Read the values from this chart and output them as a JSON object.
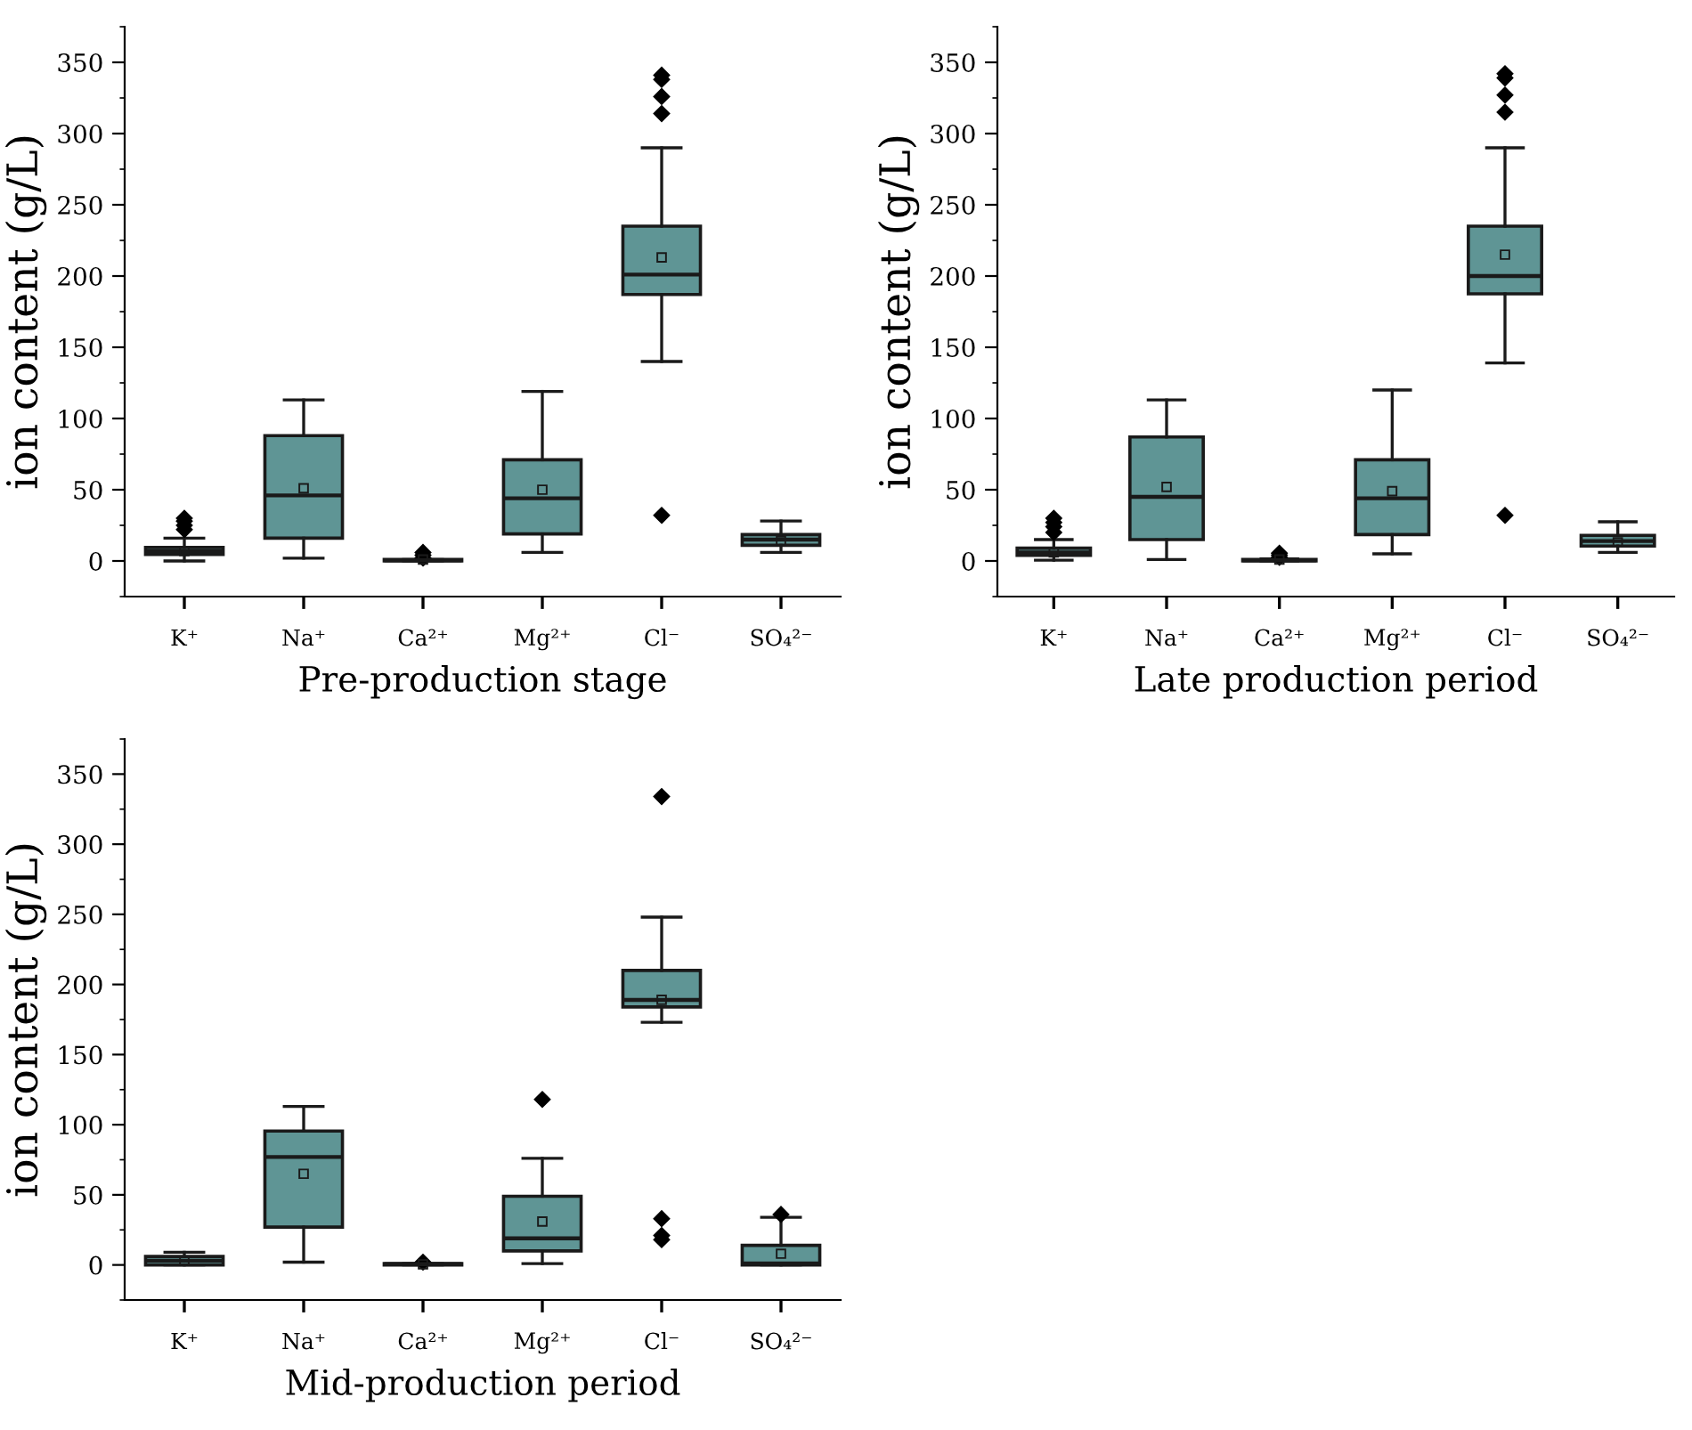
{
  "chart_data": [
    {
      "type": "box",
      "xlabel": "Pre-production stage",
      "ylabel": "ion content (g/L)",
      "categories": [
        "K⁺",
        "Na⁺",
        "Ca²⁺",
        "Mg²⁺",
        "Cl⁻",
        "SO₄²⁻"
      ],
      "color": "#5f9595",
      "ylim": [
        -25,
        375
      ],
      "yticks": [
        0,
        50,
        100,
        150,
        200,
        250,
        300,
        350
      ],
      "grid": false,
      "marker": "diamond",
      "boxes": [
        {
          "low": 0,
          "q1": 4.5,
          "median": 7,
          "q3": 9.5,
          "high": 16,
          "mean": 7,
          "outliers": [
            22,
            25,
            28,
            30
          ]
        },
        {
          "low": 2,
          "q1": 16,
          "median": 46,
          "q3": 88,
          "high": 113,
          "mean": 51
        },
        {
          "low": 0,
          "q1": 0,
          "median": 0.5,
          "q3": 1,
          "high": 1,
          "mean": 1,
          "outliers": [
            2,
            4,
            6
          ]
        },
        {
          "low": 6,
          "q1": 19,
          "median": 44,
          "q3": 71,
          "high": 119,
          "mean": 50
        },
        {
          "low": 140,
          "q1": 187,
          "median": 201,
          "q3": 235,
          "high": 290,
          "mean": 213,
          "outliers": [
            32,
            314,
            326,
            338,
            341
          ]
        },
        {
          "low": 6,
          "q1": 11,
          "median": 15,
          "q3": 18.5,
          "high": 28,
          "mean": 14
        }
      ]
    },
    {
      "type": "box",
      "xlabel": "Late production period",
      "ylabel": "ion content (g/L)",
      "categories": [
        "K⁺",
        "Na⁺",
        "Ca²⁺",
        "Mg²⁺",
        "Cl⁻",
        "SO₄²⁻"
      ],
      "color": "#5f9595",
      "ylim": [
        -25,
        375
      ],
      "yticks": [
        0,
        50,
        100,
        150,
        200,
        250,
        300,
        350
      ],
      "grid": false,
      "marker": "diamond",
      "boxes": [
        {
          "low": 0.5,
          "q1": 4,
          "median": 6,
          "q3": 9,
          "high": 15,
          "mean": 6,
          "outliers": [
            20,
            24,
            27,
            30
          ]
        },
        {
          "low": 1,
          "q1": 15,
          "median": 45,
          "q3": 87,
          "high": 113,
          "mean": 52
        },
        {
          "low": 0,
          "q1": 0,
          "median": 0.5,
          "q3": 1,
          "high": 1.5,
          "mean": 1,
          "outliers": [
            2.5,
            4,
            5.5
          ]
        },
        {
          "low": 5,
          "q1": 18.5,
          "median": 44,
          "q3": 71,
          "high": 120,
          "mean": 49
        },
        {
          "low": 139,
          "q1": 187.5,
          "median": 200,
          "q3": 235,
          "high": 290,
          "mean": 215,
          "outliers": [
            32,
            315,
            327,
            339,
            342
          ]
        },
        {
          "low": 6,
          "q1": 10.5,
          "median": 14,
          "q3": 18,
          "high": 27.5,
          "mean": 13
        }
      ]
    },
    {
      "type": "box",
      "xlabel": "Mid-production period",
      "ylabel": "ion content (g/L)",
      "categories": [
        "K⁺",
        "Na⁺",
        "Ca²⁺",
        "Mg²⁺",
        "Cl⁻",
        "SO₄²⁻"
      ],
      "color": "#5f9595",
      "ylim": [
        -25,
        375
      ],
      "yticks": [
        0,
        50,
        100,
        150,
        200,
        250,
        300,
        350
      ],
      "grid": false,
      "marker": "diamond",
      "boxes": [
        {
          "low": 0,
          "q1": 0,
          "median": 3,
          "q3": 6,
          "high": 9,
          "mean": 3
        },
        {
          "low": 2,
          "q1": 27,
          "median": 77,
          "q3": 95.5,
          "high": 113,
          "mean": 65
        },
        {
          "low": 0,
          "q1": 0,
          "median": 0.5,
          "q3": 1,
          "high": 1,
          "mean": 0.5,
          "outliers": [
            2
          ]
        },
        {
          "low": 1,
          "q1": 10,
          "median": 19,
          "q3": 49,
          "high": 76,
          "mean": 31,
          "outliers": [
            118
          ]
        },
        {
          "low": 173,
          "q1": 184,
          "median": 189,
          "q3": 210,
          "high": 248,
          "mean": 189,
          "outliers": [
            18,
            21,
            33,
            334
          ]
        },
        {
          "low": 0,
          "q1": 0,
          "median": 1,
          "q3": 14,
          "high": 34,
          "mean": 8,
          "outliers": [
            36
          ]
        }
      ]
    }
  ]
}
